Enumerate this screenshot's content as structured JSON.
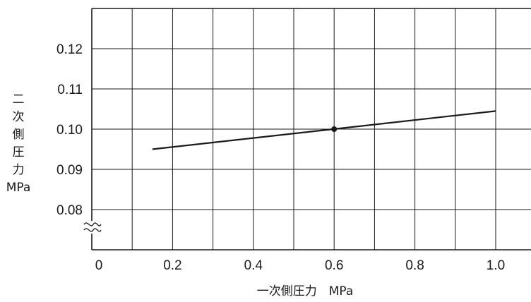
{
  "chart_data": {
    "type": "line",
    "title": "",
    "xlabel": "一次側圧力　MPa",
    "ylabel_lines": [
      "二",
      "次",
      "側",
      "圧",
      "力",
      "MPa"
    ],
    "xlim": [
      0,
      1.1
    ],
    "ylim": [
      0.07,
      0.13
    ],
    "x_ticks": [
      {
        "value": 0,
        "label": "0"
      },
      {
        "value": 0.2,
        "label": "0.2"
      },
      {
        "value": 0.4,
        "label": "0.4"
      },
      {
        "value": 0.6,
        "label": "0.6"
      },
      {
        "value": 0.8,
        "label": "0.8"
      },
      {
        "value": 1.0,
        "label": "1.0"
      }
    ],
    "y_ticks": [
      {
        "value": 0.08,
        "label": "0.08"
      },
      {
        "value": 0.09,
        "label": "0.09"
      },
      {
        "value": 0.1,
        "label": "0.10"
      },
      {
        "value": 0.11,
        "label": "0.11"
      },
      {
        "value": 0.12,
        "label": "0.12"
      }
    ],
    "vertical_grid_x": [
      0.1,
      0.2,
      0.3,
      0.4,
      0.5,
      0.6,
      0.7,
      0.8,
      0.9,
      1.0
    ],
    "horizontal_grid_y": [
      0.08,
      0.09,
      0.1,
      0.11,
      0.12
    ],
    "axis_break": true,
    "grid": true,
    "series": [
      {
        "x": [
          0.15,
          1.0
        ],
        "y": [
          0.095,
          0.1045
        ]
      }
    ],
    "markers": [
      {
        "x": 0.6,
        "y": 0.1
      }
    ]
  }
}
